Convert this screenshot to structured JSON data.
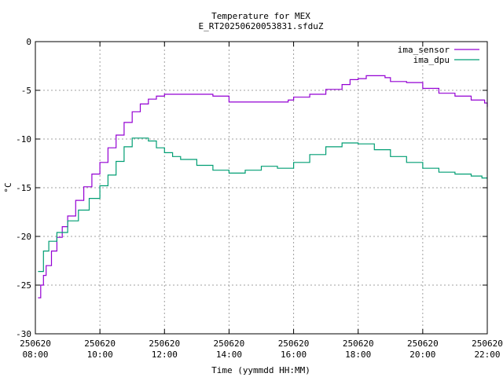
{
  "chart_data": {
    "type": "line",
    "title": "Temperature for MEX",
    "subtitle": "E_RT20250620053831.sfduZ",
    "xlabel": "Time (yymmdd HH:MM)",
    "ylabel": "°C",
    "xlim": [
      "2025-06-20 08:00",
      "2025-06-20 22:00"
    ],
    "ylim": [
      -30,
      0
    ],
    "x_ticks": [
      {
        "date": "250620",
        "time": "08:00"
      },
      {
        "date": "250620",
        "time": "10:00"
      },
      {
        "date": "250620",
        "time": "12:00"
      },
      {
        "date": "250620",
        "time": "14:00"
      },
      {
        "date": "250620",
        "time": "16:00"
      },
      {
        "date": "250620",
        "time": "18:00"
      },
      {
        "date": "250620",
        "time": "20:00"
      },
      {
        "date": "250620",
        "time": "22:00"
      }
    ],
    "y_ticks": [
      "0",
      "-5",
      "-10",
      "-15",
      "-20",
      "-25",
      "-30"
    ],
    "grid": true,
    "legend_position": "top-right",
    "series": [
      {
        "name": "ima_sensor",
        "color": "#9400d3",
        "x": [
          "08:05",
          "08:10",
          "08:15",
          "08:20",
          "08:30",
          "08:40",
          "08:50",
          "09:00",
          "09:15",
          "09:30",
          "09:45",
          "10:00",
          "10:15",
          "10:30",
          "10:45",
          "11:00",
          "11:15",
          "11:30",
          "11:45",
          "12:00",
          "12:30",
          "13:00",
          "13:30",
          "14:00",
          "14:30",
          "15:00",
          "15:30",
          "15:50",
          "16:00",
          "16:30",
          "17:00",
          "17:30",
          "17:45",
          "18:00",
          "18:15",
          "18:30",
          "18:50",
          "19:00",
          "19:30",
          "20:00",
          "20:30",
          "21:00",
          "21:30",
          "21:55",
          "22:00"
        ],
        "y": [
          -26.3,
          -25.0,
          -24.0,
          -23.0,
          -21.5,
          -20.1,
          -19.0,
          -17.9,
          -16.3,
          -14.9,
          -13.6,
          -12.4,
          -10.9,
          -9.6,
          -8.3,
          -7.2,
          -6.4,
          -5.9,
          -5.6,
          -5.4,
          -5.4,
          -5.4,
          -5.6,
          -6.2,
          -6.2,
          -6.2,
          -6.2,
          -6.0,
          -5.7,
          -5.4,
          -4.9,
          -4.4,
          -3.9,
          -3.8,
          -3.5,
          -3.5,
          -3.7,
          -4.1,
          -4.2,
          -4.8,
          -5.3,
          -5.6,
          -6.0,
          -6.3,
          -6.7
        ]
      },
      {
        "name": "ima_dpu",
        "color": "#009e73",
        "x": [
          "08:05",
          "08:15",
          "08:25",
          "08:40",
          "09:00",
          "09:20",
          "09:40",
          "10:00",
          "10:15",
          "10:30",
          "10:45",
          "11:00",
          "11:15",
          "11:30",
          "11:45",
          "12:00",
          "12:15",
          "12:30",
          "13:00",
          "13:30",
          "14:00",
          "14:30",
          "15:00",
          "15:30",
          "16:00",
          "16:30",
          "17:00",
          "17:30",
          "18:00",
          "18:30",
          "19:00",
          "19:30",
          "20:00",
          "20:30",
          "21:00",
          "21:30",
          "21:50",
          "22:00"
        ],
        "y": [
          -23.6,
          -21.5,
          -20.5,
          -19.6,
          -18.4,
          -17.3,
          -16.1,
          -14.8,
          -13.7,
          -12.3,
          -10.8,
          -9.9,
          -9.9,
          -10.2,
          -10.9,
          -11.4,
          -11.8,
          -12.1,
          -12.7,
          -13.2,
          -13.5,
          -13.2,
          -12.8,
          -13.0,
          -12.4,
          -11.6,
          -10.8,
          -10.4,
          -10.5,
          -11.1,
          -11.8,
          -12.4,
          -13.0,
          -13.4,
          -13.6,
          -13.8,
          -14.0,
          -14.0
        ]
      }
    ]
  }
}
